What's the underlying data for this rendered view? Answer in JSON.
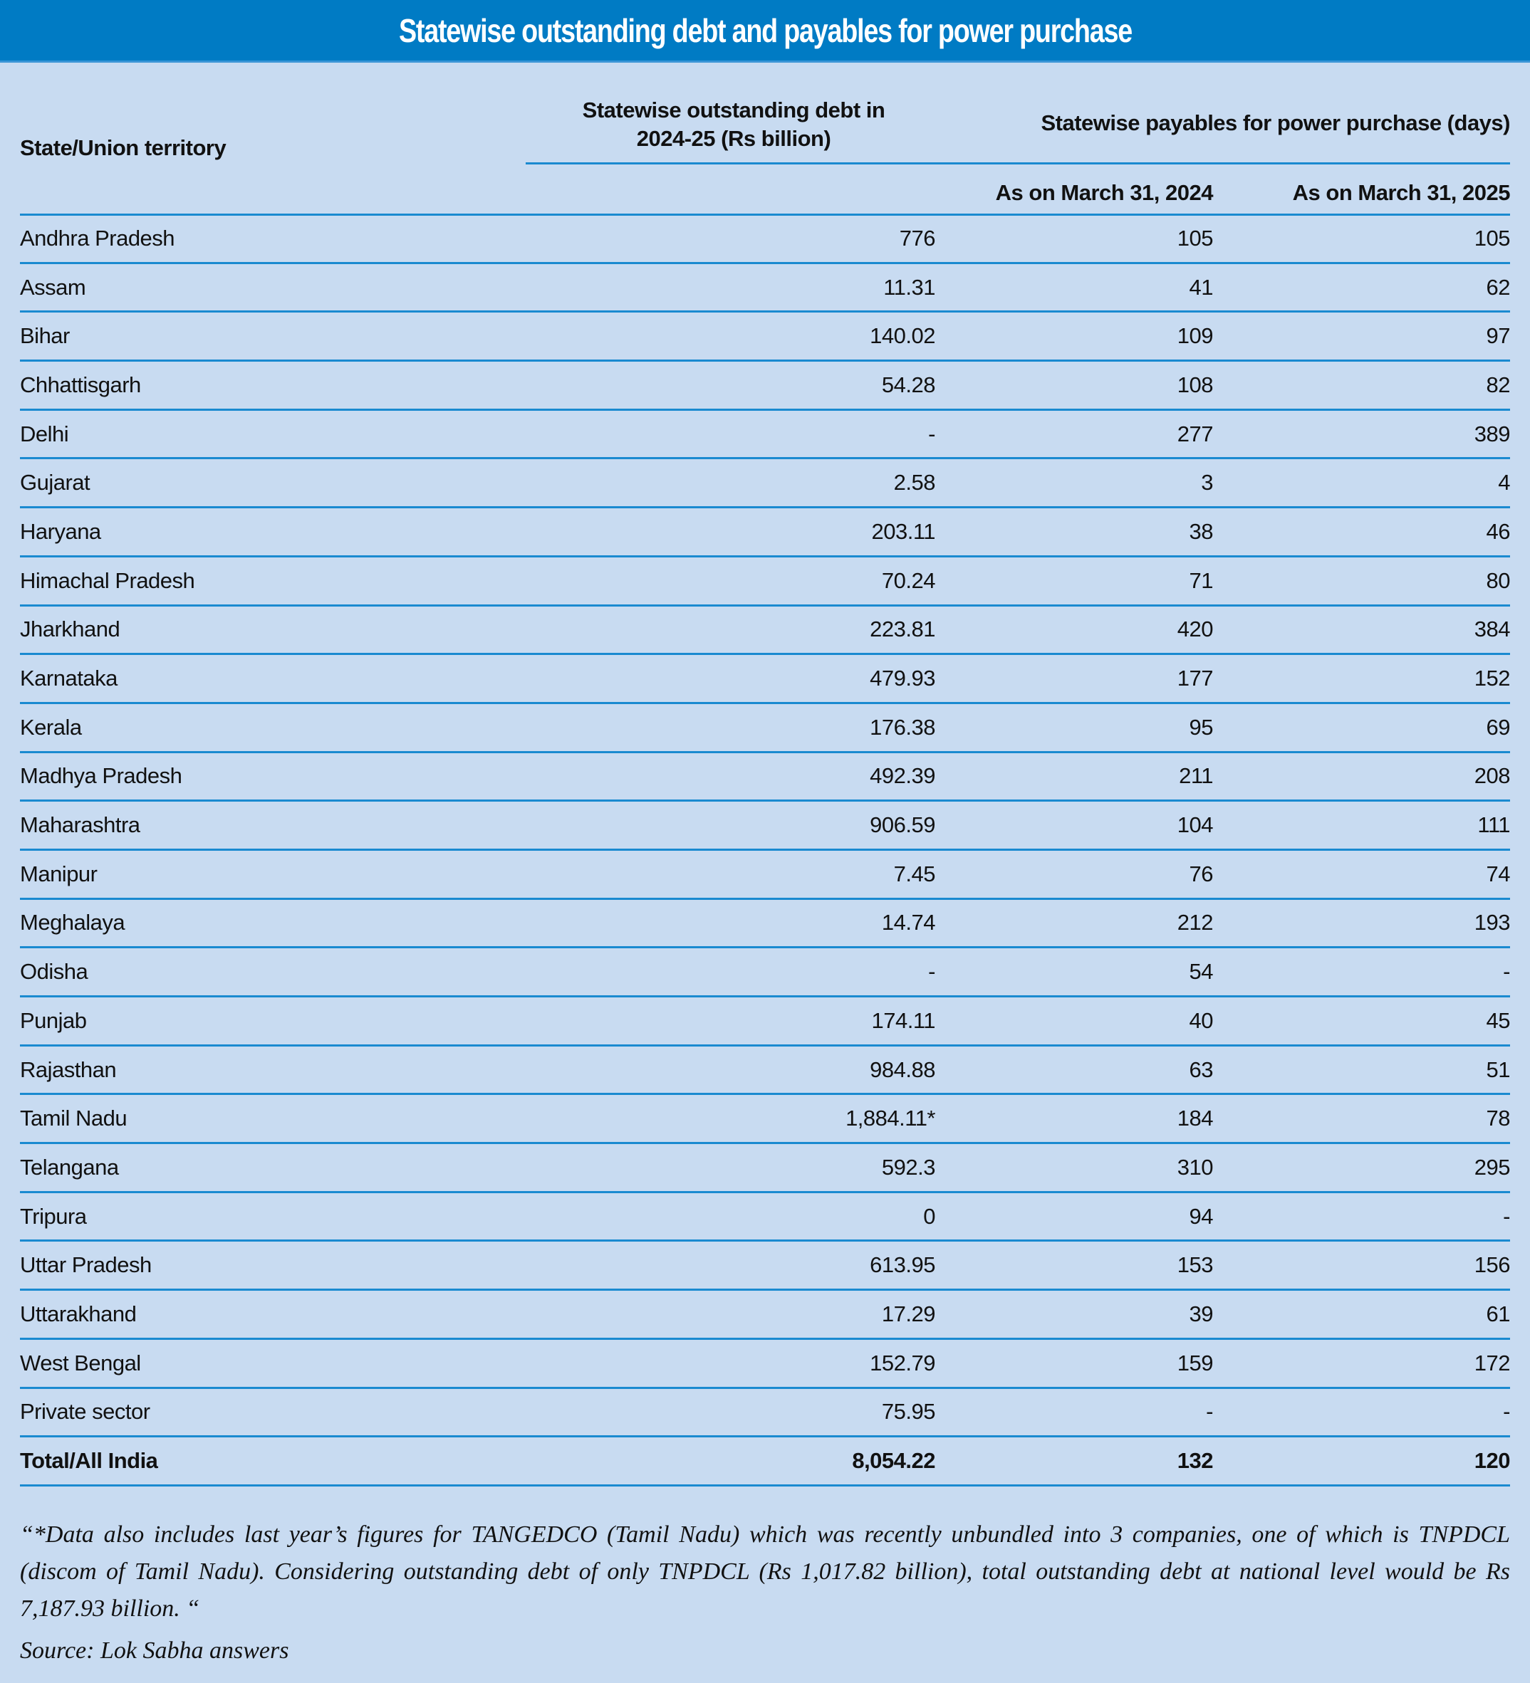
{
  "title": "Statewise outstanding debt and payables for power purchase",
  "headers": {
    "state": "State/Union territory",
    "debt": "Statewise outstanding debt in 2024-25 (Rs billion)",
    "debt_line1": "Statewise outstanding debt in",
    "debt_line2": "2024-25 (Rs billion)",
    "payables": "Statewise payables for power purchase (days)",
    "mar2024": "As on March 31, 2024",
    "mar2025": "As on March 31, 2025"
  },
  "rows": [
    [
      "Andhra Pradesh",
      "776",
      "105",
      "105"
    ],
    [
      "Assam",
      "11.31",
      "41",
      "62"
    ],
    [
      "Bihar",
      "140.02",
      "109",
      "97"
    ],
    [
      "Chhattisgarh",
      "54.28",
      "108",
      "82"
    ],
    [
      "Delhi",
      "-",
      "277",
      "389"
    ],
    [
      "Gujarat",
      "2.58",
      "3",
      "4"
    ],
    [
      "Haryana",
      "203.11",
      "38",
      "46"
    ],
    [
      "Himachal Pradesh",
      "70.24",
      "71",
      "80"
    ],
    [
      "Jharkhand",
      "223.81",
      "420",
      "384"
    ],
    [
      "Karnataka",
      "479.93",
      "177",
      "152"
    ],
    [
      "Kerala",
      "176.38",
      "95",
      "69"
    ],
    [
      "Madhya Pradesh",
      "492.39",
      "211",
      "208"
    ],
    [
      "Maharashtra",
      "906.59",
      "104",
      "111"
    ],
    [
      "Manipur",
      "7.45",
      "76",
      "74"
    ],
    [
      "Meghalaya",
      "14.74",
      "212",
      "193"
    ],
    [
      "Odisha",
      "-",
      "54",
      "-"
    ],
    [
      "Punjab",
      "174.11",
      "40",
      "45"
    ],
    [
      "Rajasthan",
      "984.88",
      "63",
      "51"
    ],
    [
      "Tamil Nadu",
      "1,884.11*",
      "184",
      "78"
    ],
    [
      "Telangana",
      "592.3",
      "310",
      "295"
    ],
    [
      "Tripura",
      "0",
      "94",
      "-"
    ],
    [
      "Uttar Pradesh",
      "613.95",
      "153",
      "156"
    ],
    [
      "Uttarakhand",
      "17.29",
      "39",
      "61"
    ],
    [
      "West Bengal",
      "152.79",
      "159",
      "172"
    ],
    [
      "Private sector",
      "75.95",
      "-",
      "-"
    ]
  ],
  "total": [
    "Total/All India",
    "8,054.22",
    "132",
    "120"
  ],
  "footnote": "“*Data also includes last year’s figures for TANGEDCO (Tamil Nadu) which was recently unbundled into 3 companies, one of which is TNPDCL (discom of Tamil Nadu). Considering outstanding debt of only TNPDCL (Rs 1,017.82 billion), total outstanding debt at national level would be Rs 7,187.93 billion. “",
  "source": "Source: Lok Sabha answers",
  "colors": {
    "title_bar": "#007bc4",
    "background": "#c8dbf1",
    "rule": "#1a8ad0"
  }
}
